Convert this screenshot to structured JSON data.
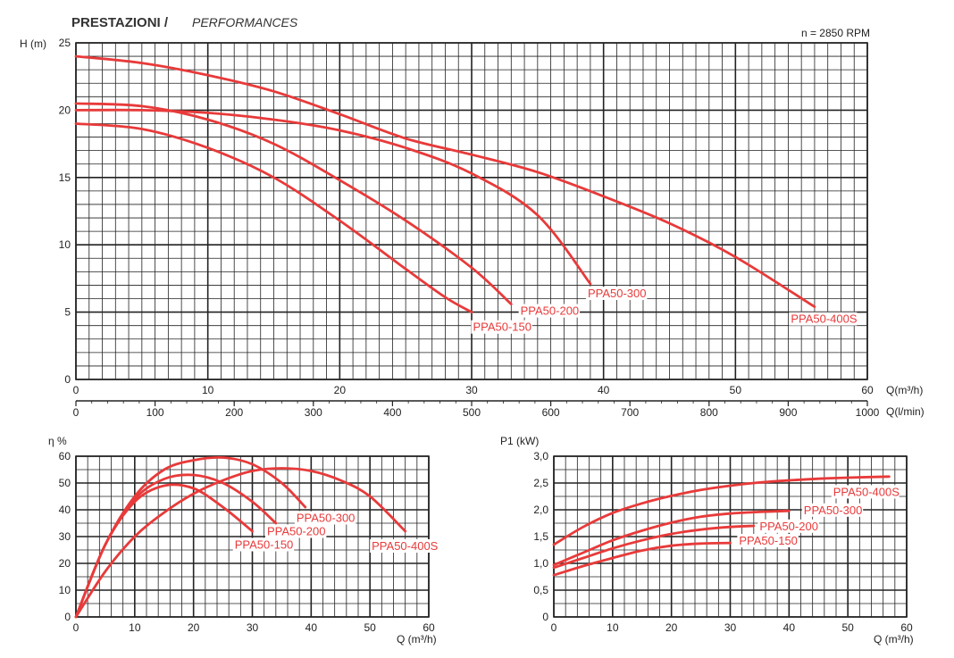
{
  "page": {
    "title_main": "PRESTAZIONI /",
    "title_sub": "PERFORMANCES",
    "rpm_note": "n = 2850 RPM",
    "colors": {
      "curve": "#e83a3a",
      "grid": "#222222",
      "text": "#333333"
    }
  },
  "chart_data": [
    {
      "type": "line",
      "title": "",
      "xlabel": "Q(m³/h)",
      "ylabel": "H (m)",
      "xlim": [
        0,
        60
      ],
      "ylim": [
        0,
        25
      ],
      "xticks": [
        "0",
        "10",
        "20",
        "30",
        "40",
        "50",
        "60"
      ],
      "yticks": [
        "0",
        "5",
        "10",
        "15",
        "20",
        "25"
      ],
      "secondary_x": {
        "label": "Q(l/min)",
        "lim": [
          0,
          1000
        ],
        "ticks": [
          "0",
          "100",
          "200",
          "300",
          "400",
          "500",
          "600",
          "700",
          "800",
          "900",
          "1000"
        ]
      },
      "series": [
        {
          "name": "PPA50-150",
          "x": [
            0,
            5,
            10,
            15,
            20,
            25,
            28,
            30
          ],
          "y": [
            19,
            18.6,
            17.2,
            15,
            11.8,
            8.2,
            6.1,
            5
          ]
        },
        {
          "name": "PPA50-200",
          "x": [
            0,
            5,
            10,
            15,
            20,
            25,
            30,
            33
          ],
          "y": [
            20.5,
            20.3,
            19.3,
            17.5,
            14.8,
            11.8,
            8.3,
            5.6
          ]
        },
        {
          "name": "PPA50-300",
          "x": [
            0,
            5,
            10,
            15,
            20,
            25,
            30,
            35,
            39
          ],
          "y": [
            20,
            20,
            19.8,
            19.3,
            18.5,
            17.2,
            15.3,
            12.2,
            7.1
          ]
        },
        {
          "name": "PPA50-400S",
          "x": [
            0,
            5,
            10,
            15,
            20,
            25,
            30,
            35,
            40,
            45,
            50,
            56
          ],
          "y": [
            24,
            23.5,
            22.6,
            21.4,
            19.7,
            17.9,
            16.7,
            15.4,
            13.6,
            11.6,
            9.1,
            5.4
          ]
        }
      ]
    },
    {
      "type": "line",
      "title": "",
      "xlabel": "Q (m³/h)",
      "ylabel": "η %",
      "xlim": [
        0,
        60
      ],
      "ylim": [
        0,
        60
      ],
      "xticks": [
        "0",
        "10",
        "20",
        "30",
        "40",
        "50",
        "60"
      ],
      "yticks": [
        "0",
        "10",
        "20",
        "30",
        "40",
        "50",
        "60"
      ],
      "series": [
        {
          "name": "PPA50-150",
          "x": [
            0,
            5,
            10,
            15,
            20,
            25,
            30
          ],
          "y": [
            0,
            27,
            43,
            49,
            48,
            41,
            32
          ]
        },
        {
          "name": "PPA50-200",
          "x": [
            0,
            5,
            10,
            15,
            20,
            25,
            30,
            34
          ],
          "y": [
            0,
            27,
            44,
            51.5,
            53,
            50,
            43,
            35
          ]
        },
        {
          "name": "PPA50-300",
          "x": [
            0,
            5,
            10,
            15,
            20,
            25,
            30,
            35,
            39
          ],
          "y": [
            0,
            27,
            45,
            55,
            58.5,
            59.5,
            57,
            50,
            41
          ]
        },
        {
          "name": "PPA50-400S",
          "x": [
            0,
            5,
            10,
            15,
            20,
            25,
            30,
            35,
            40,
            45,
            50,
            56
          ],
          "y": [
            0,
            17,
            30,
            39,
            46,
            51,
            54.5,
            55.5,
            54.5,
            51,
            45,
            32
          ]
        }
      ]
    },
    {
      "type": "line",
      "title": "",
      "xlabel": "Q (m³/h)",
      "ylabel": "P1 (kW)",
      "xlim": [
        0,
        60
      ],
      "ylim": [
        0,
        3
      ],
      "xticks": [
        "0",
        "10",
        "20",
        "30",
        "40",
        "50",
        "60"
      ],
      "yticks": [
        "0",
        "0,5",
        "1,0",
        "1,5",
        "2,0",
        "2,5",
        "3,0"
      ],
      "series": [
        {
          "name": "PPA50-150",
          "x": [
            0,
            5,
            10,
            15,
            20,
            25,
            30
          ],
          "y": [
            0.78,
            0.95,
            1.1,
            1.24,
            1.33,
            1.37,
            1.38
          ]
        },
        {
          "name": "PPA50-200",
          "x": [
            0,
            5,
            10,
            15,
            20,
            25,
            30,
            34
          ],
          "y": [
            0.92,
            1.1,
            1.28,
            1.43,
            1.55,
            1.63,
            1.68,
            1.7
          ]
        },
        {
          "name": "PPA50-300",
          "x": [
            0,
            5,
            10,
            15,
            20,
            25,
            30,
            35,
            40
          ],
          "y": [
            0.97,
            1.2,
            1.43,
            1.61,
            1.76,
            1.87,
            1.93,
            1.96,
            1.98
          ]
        },
        {
          "name": "PPA50-400S",
          "x": [
            0,
            5,
            10,
            15,
            20,
            25,
            30,
            35,
            40,
            45,
            50,
            57
          ],
          "y": [
            1.35,
            1.68,
            1.94,
            2.12,
            2.26,
            2.37,
            2.45,
            2.51,
            2.55,
            2.58,
            2.6,
            2.62
          ]
        }
      ]
    }
  ]
}
